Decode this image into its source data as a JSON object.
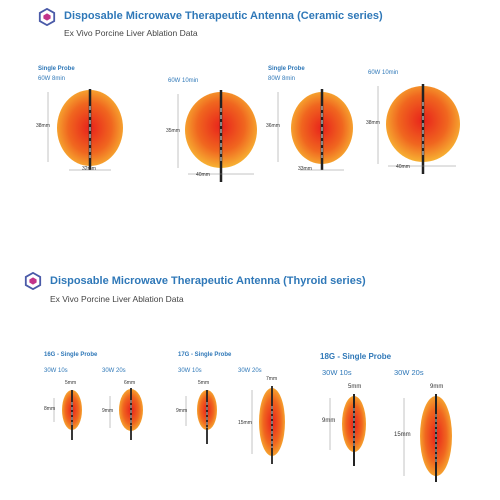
{
  "colors": {
    "accent": "#2f78b8",
    "zone_center": "#e8231b",
    "zone_edge": "#f7b233"
  },
  "section1": {
    "title": "Disposable Microwave Therapeutic Antenna (Ceramic series)",
    "subtitle": "Ex Vivo Porcine Liver Ablation Data",
    "probe_label_1": "Single Probe",
    "probe_label_2": "Single Probe",
    "zones": [
      {
        "setting": "60W 8min",
        "height": "38mm",
        "width": "32mm"
      },
      {
        "setting": "60W 10min",
        "height": "35mm",
        "width": "40mm"
      },
      {
        "setting": "80W 8min",
        "height": "36mm",
        "width": "33mm"
      },
      {
        "setting": "60W 10min",
        "height": "38mm",
        "width": "40mm"
      }
    ]
  },
  "section2": {
    "title": "Disposable Microwave Therapeutic Antenna (Thyroid series)",
    "subtitle": "Ex Vivo Porcine Liver Ablation Data",
    "groups": [
      {
        "label": "16G - Single Probe"
      },
      {
        "label": "17G - Single Probe"
      },
      {
        "label": "18G - Single Probe"
      }
    ],
    "zones": [
      {
        "setting": "30W 10s",
        "height": "8mm",
        "width": "5mm"
      },
      {
        "setting": "30W 20s",
        "height": "9mm",
        "width": "6mm"
      },
      {
        "setting": "30W 10s",
        "height": "9mm",
        "width": "5mm"
      },
      {
        "setting": "30W 20s",
        "height": "15mm",
        "width": "7mm"
      },
      {
        "setting": "30W 10s",
        "height": "9mm",
        "width": "5mm"
      },
      {
        "setting": "30W 20s",
        "height": "15mm",
        "width": "9mm"
      }
    ]
  }
}
